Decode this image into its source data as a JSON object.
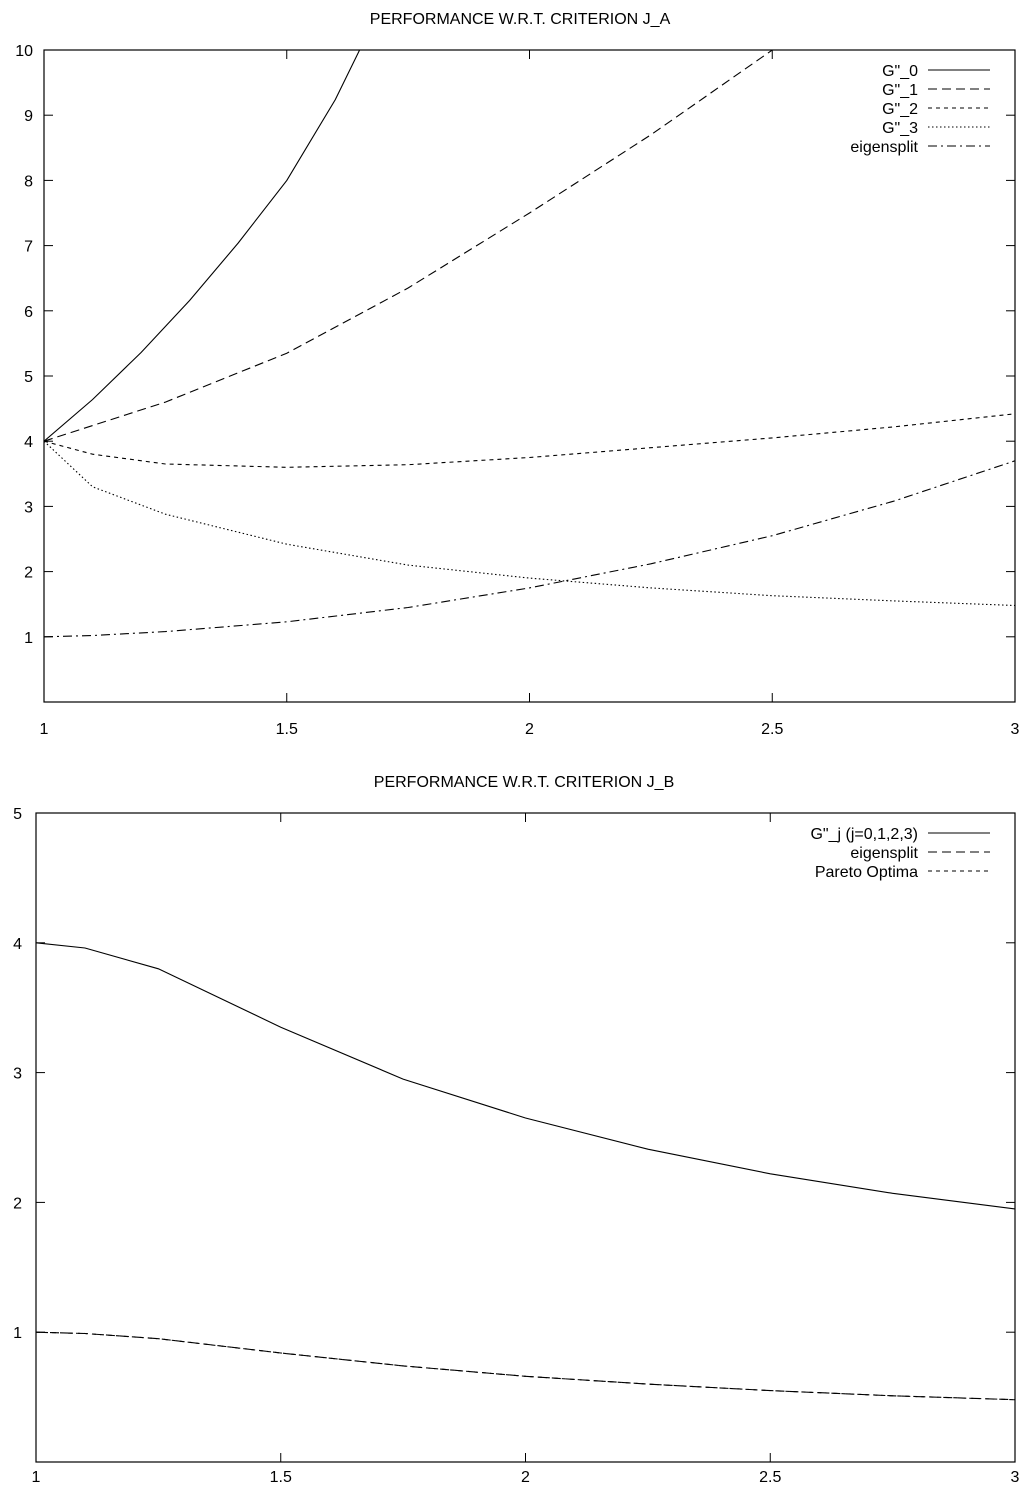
{
  "chart_data": [
    {
      "type": "line",
      "title": "PERFORMANCE W.R.T. CRITERION J_A",
      "xlabel": "",
      "ylabel": "",
      "xlim": [
        1,
        3
      ],
      "ylim": [
        0,
        10
      ],
      "x_ticks": [
        1,
        1.5,
        2,
        2.5,
        3
      ],
      "x_tick_labels": [
        "1",
        "1.5",
        "2",
        "2.5",
        "3"
      ],
      "y_ticks": [
        1,
        2,
        3,
        4,
        5,
        6,
        7,
        8,
        9,
        10
      ],
      "y_tick_labels": [
        "1",
        "2",
        "3",
        "4",
        "5",
        "6",
        "7",
        "8",
        "9",
        "10"
      ],
      "grid": false,
      "legend_position": "top-right",
      "series": [
        {
          "name": "G\"_0",
          "style": "solid",
          "x": [
            1,
            1.1,
            1.2,
            1.3,
            1.4,
            1.5,
            1.6,
            1.65
          ],
          "y": [
            4,
            4.64,
            5.36,
            6.16,
            7.04,
            8.0,
            9.24,
            10.0
          ]
        },
        {
          "name": "G\"_1",
          "style": "dashed",
          "x": [
            1,
            1.25,
            1.5,
            1.75,
            2,
            2.25,
            2.5
          ],
          "y": [
            4,
            4.6,
            5.35,
            6.35,
            7.5,
            8.7,
            10.0
          ]
        },
        {
          "name": "G\"_2",
          "style": "short-dashed",
          "x": [
            1,
            1.1,
            1.25,
            1.5,
            1.75,
            2,
            2.25,
            2.5,
            2.75,
            3
          ],
          "y": [
            4,
            3.8,
            3.65,
            3.6,
            3.64,
            3.75,
            3.9,
            4.05,
            4.22,
            4.42
          ]
        },
        {
          "name": "G\"_3",
          "style": "dotted",
          "x": [
            1,
            1.1,
            1.25,
            1.5,
            1.75,
            2,
            2.25,
            2.5,
            2.75,
            3
          ],
          "y": [
            4,
            3.3,
            2.88,
            2.42,
            2.1,
            1.9,
            1.75,
            1.63,
            1.55,
            1.48
          ]
        },
        {
          "name": "eigensplit",
          "style": "dash-dot",
          "x": [
            1,
            1.1,
            1.25,
            1.5,
            1.75,
            2,
            2.25,
            2.5,
            2.75,
            3
          ],
          "y": [
            1,
            1.02,
            1.08,
            1.23,
            1.45,
            1.75,
            2.12,
            2.55,
            3.08,
            3.7
          ]
        }
      ]
    },
    {
      "type": "line",
      "title": "PERFORMANCE W.R.T. CRITERION J_B",
      "xlabel": "",
      "ylabel": "",
      "xlim": [
        1,
        3
      ],
      "ylim": [
        0,
        5
      ],
      "x_ticks": [
        1,
        1.5,
        2,
        2.5,
        3
      ],
      "x_tick_labels": [
        "1",
        "1.5",
        "2",
        "2.5",
        "3"
      ],
      "y_ticks": [
        1,
        2,
        3,
        4,
        5
      ],
      "y_tick_labels": [
        "1",
        "2",
        "3",
        "4",
        "5"
      ],
      "grid": false,
      "legend_position": "top-right",
      "series": [
        {
          "name": "G\"_j (j=0,1,2,3)",
          "style": "solid",
          "x": [
            1,
            1.1,
            1.25,
            1.5,
            1.75,
            2,
            2.25,
            2.5,
            2.75,
            3
          ],
          "y": [
            4.0,
            3.96,
            3.8,
            3.35,
            2.95,
            2.65,
            2.41,
            2.22,
            2.07,
            1.95
          ]
        },
        {
          "name": "eigensplit",
          "style": "dashed",
          "x": [
            1,
            1.1,
            1.25,
            1.5,
            1.75,
            2,
            2.25,
            2.5,
            2.75,
            3
          ],
          "y": [
            1.0,
            0.99,
            0.95,
            0.84,
            0.74,
            0.66,
            0.6,
            0.55,
            0.51,
            0.48
          ]
        },
        {
          "name": "Pareto Optima",
          "style": "short-dashed",
          "x": [
            1,
            1.1,
            1.25,
            1.5,
            1.75,
            2,
            2.25,
            2.5,
            2.75,
            3
          ],
          "y": [
            1.0,
            0.99,
            0.95,
            0.84,
            0.74,
            0.66,
            0.6,
            0.55,
            0.51,
            0.48
          ]
        }
      ]
    }
  ]
}
